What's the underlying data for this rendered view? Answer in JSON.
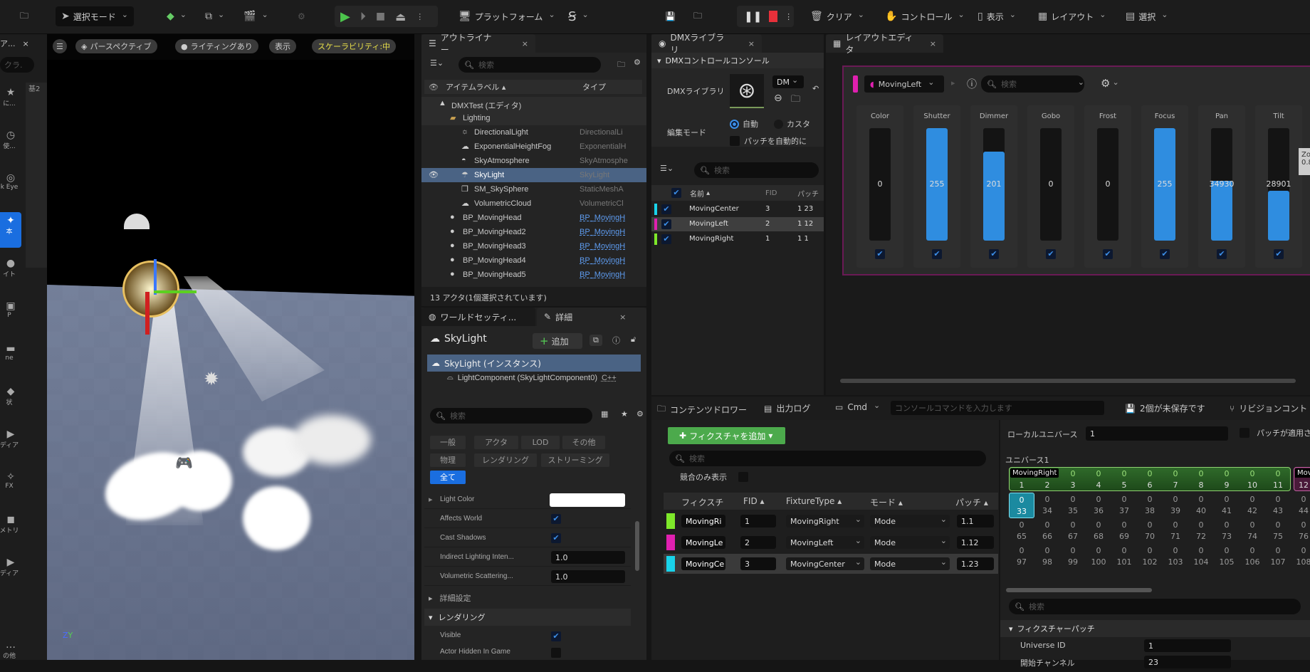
{
  "toolbar": {
    "mode": "選択モード",
    "platform": "プラットフォーム",
    "clear": "クリア",
    "control": "コントロール",
    "view": "表示",
    "layout": "レイアウト",
    "select": "選択"
  },
  "left_panel": {
    "tab": "ア...",
    "search_placeholder": "クラ.",
    "badge": "基2",
    "items": [
      {
        "icon": "star-icon",
        "label": "に..."
      },
      {
        "icon": "clock-icon",
        "label": "使..."
      },
      {
        "icon": "eye-icon",
        "label": "k Eye"
      },
      {
        "icon": "shapes-icon",
        "label": "本",
        "active": true
      },
      {
        "icon": "light-icon",
        "label": "イト"
      },
      {
        "icon": "cinematic-icon",
        "label": "P"
      },
      {
        "icon": "volume-icon",
        "label": "ne"
      },
      {
        "icon": "shape-icon",
        "label": "状"
      },
      {
        "icon": "media-icon",
        "label": "ディア"
      },
      {
        "icon": "vfx-icon",
        "label": "FX"
      },
      {
        "icon": "geometry-icon",
        "label": "メトリ"
      },
      {
        "icon": "media-icon",
        "label": "ディア"
      },
      {
        "icon": "more-icon",
        "label": "の他"
      }
    ]
  },
  "viewport": {
    "buttons": [
      "パースペクティブ",
      "ライティングあり",
      "表示",
      "スケーラビリティ:中"
    ],
    "axis": {
      "z": "Z",
      "y": "Y"
    }
  },
  "outliner": {
    "tab": "アウトライナー",
    "search_placeholder": "検索",
    "col_label": "アイテムラベル",
    "col_type": "タイプ",
    "rows": [
      {
        "label": "DMXTest (エディタ)",
        "type": "",
        "indent": 1,
        "icon": "level-icon"
      },
      {
        "label": "Lighting",
        "type": "",
        "indent": 2,
        "icon": "folder-icon"
      },
      {
        "label": "DirectionalLight",
        "type": "DirectionalLi",
        "indent": 3,
        "icon": "sun-icon"
      },
      {
        "label": "ExponentialHeightFog",
        "type": "ExponentialH",
        "indent": 3,
        "icon": "fog-icon"
      },
      {
        "label": "SkyAtmosphere",
        "type": "SkyAtmosphe",
        "indent": 3,
        "icon": "atmosphere-icon"
      },
      {
        "label": "SkyLight",
        "type": "SkyLight",
        "indent": 3,
        "icon": "skylight-icon",
        "selected": true
      },
      {
        "label": "SM_SkySphere",
        "type": "StaticMeshA",
        "indent": 3,
        "icon": "mesh-icon"
      },
      {
        "label": "VolumetricCloud",
        "type": "VolumetricCl",
        "indent": 3,
        "icon": "cloud-icon"
      },
      {
        "label": "BP_MovingHead",
        "type": "BP_MovingH",
        "indent": 2,
        "icon": "actor-icon",
        "link": true
      },
      {
        "label": "BP_MovingHead2",
        "type": "BP_MovingH",
        "indent": 2,
        "icon": "actor-icon",
        "link": true
      },
      {
        "label": "BP_MovingHead3",
        "type": "BP_MovingH",
        "indent": 2,
        "icon": "actor-icon",
        "link": true
      },
      {
        "label": "BP_MovingHead4",
        "type": "BP_MovingH",
        "indent": 2,
        "icon": "actor-icon",
        "link": true
      },
      {
        "label": "BP_MovingHead5",
        "type": "BP_MovingH",
        "indent": 2,
        "icon": "actor-icon",
        "link": true
      }
    ],
    "footer": "13 アクタ(1個選択されています)"
  },
  "details": {
    "tab_world": "ワールドセッティ...",
    "tab_details": "詳細",
    "actor": "SkyLight",
    "add": "追加",
    "instance": "SkyLight (インスタンス)",
    "component": "LightComponent (SkyLightComponent0)",
    "component_link": "C++",
    "search_placeholder": "検索",
    "filters": [
      "一般",
      "アクタ",
      "LOD",
      "その他",
      "物理",
      "レンダリング",
      "ストリーミング",
      "全て"
    ],
    "props": [
      {
        "label": "Light Color",
        "kind": "color",
        "value": "#ffffff"
      },
      {
        "label": "Affects World",
        "kind": "check",
        "value": true
      },
      {
        "label": "Cast Shadows",
        "kind": "check",
        "value": true
      },
      {
        "label": "Indirect Lighting Inten...",
        "kind": "num",
        "value": "1.0"
      },
      {
        "label": "Volumetric Scattering...",
        "kind": "num",
        "value": "1.0"
      }
    ],
    "advanced": "詳細設定",
    "rendering_section": "レンダリング",
    "rendering_props": [
      {
        "label": "Visible",
        "value": true
      },
      {
        "label": "Actor Hidden In Game",
        "value": false
      }
    ]
  },
  "dmx_library": {
    "tab": "DMXライブラリ",
    "section": "DMXコントロールコンソール",
    "library_label": "DMXライブラリ",
    "library_combo": "DM",
    "edit_mode_label": "編集モード",
    "mode_auto": "自動",
    "mode_custom": "カスタ",
    "auto_patch": "パッチを自動的に",
    "search_placeholder": "検索",
    "col_name": "名前",
    "col_fid": "FID",
    "col_patch": "パッチ",
    "rows": [
      {
        "name": "MovingCenter",
        "fid": "3",
        "patch": "1 23",
        "color": "#19d3ea"
      },
      {
        "name": "MovingLeft",
        "fid": "2",
        "patch": "1 12",
        "color": "#e020b0",
        "selected": true
      },
      {
        "name": "MovingRight",
        "fid": "1",
        "patch": "1 1",
        "color": "#7ee82a"
      }
    ]
  },
  "layout_editor": {
    "tab": "レイアウトエディタ",
    "fixture": "MovingLeft",
    "fixture_color": "#e020b0",
    "search_placeholder": "検索",
    "faders": [
      {
        "name": "Color",
        "value": 0,
        "max": 255
      },
      {
        "name": "Shutter",
        "value": 255,
        "max": 255
      },
      {
        "name": "Dimmer",
        "value": 201,
        "max": 255
      },
      {
        "name": "Gobo",
        "value": 0,
        "max": 255
      },
      {
        "name": "Frost",
        "value": 0,
        "max": 255
      },
      {
        "name": "Focus",
        "value": 255,
        "max": 255
      },
      {
        "name": "Pan",
        "value": 34930,
        "max": 65535
      },
      {
        "name": "Tilt",
        "value": 28901,
        "max": 65535
      }
    ],
    "tooltip": [
      "Zoo",
      "0.8"
    ]
  },
  "bottom_bar": {
    "content_drawer": "コンテンツドロワー",
    "output_log": "出力ログ",
    "cmd": "Cmd",
    "console_placeholder": "コンソールコマンドを入力します",
    "unsaved": "2個が未保存です",
    "revision": "リビジョンコント"
  },
  "fixture_patch": {
    "add_button": "フィクスチャを追加",
    "search_placeholder": "検索",
    "conflicts_only": "競合のみ表示",
    "columns": [
      "フィクスチ",
      "FID",
      "FixtureType",
      "モード",
      "パッチ"
    ],
    "rows": [
      {
        "name": "MovingRi",
        "fid": "1",
        "type": "MovingRight",
        "mode": "Mode",
        "patch": "1.1",
        "color": "#7ee82a"
      },
      {
        "name": "MovingLe",
        "fid": "2",
        "type": "MovingLeft",
        "mode": "Mode",
        "patch": "1.12",
        "color": "#e020b0"
      },
      {
        "name": "MovingCe",
        "fid": "3",
        "type": "MovingCenter",
        "mode": "Mode",
        "patch": "1.23",
        "color": "#19d3ea",
        "selected": true
      }
    ]
  },
  "universe": {
    "local_label": "ローカルユニバース",
    "local_value": "1",
    "patch_applied": "パッチが適用さ",
    "title": "ユニバース1",
    "fixture_labels": {
      "right": "MovingRight",
      "left": "Movin"
    },
    "row_starts": [
      1,
      33,
      65,
      97
    ],
    "values": 0,
    "search_placeholder": "検索",
    "section": "フィクスチャーパッチ",
    "props": [
      {
        "label": "Universe ID",
        "value": "1"
      },
      {
        "label": "開始チャンネル",
        "value": "23"
      }
    ]
  }
}
